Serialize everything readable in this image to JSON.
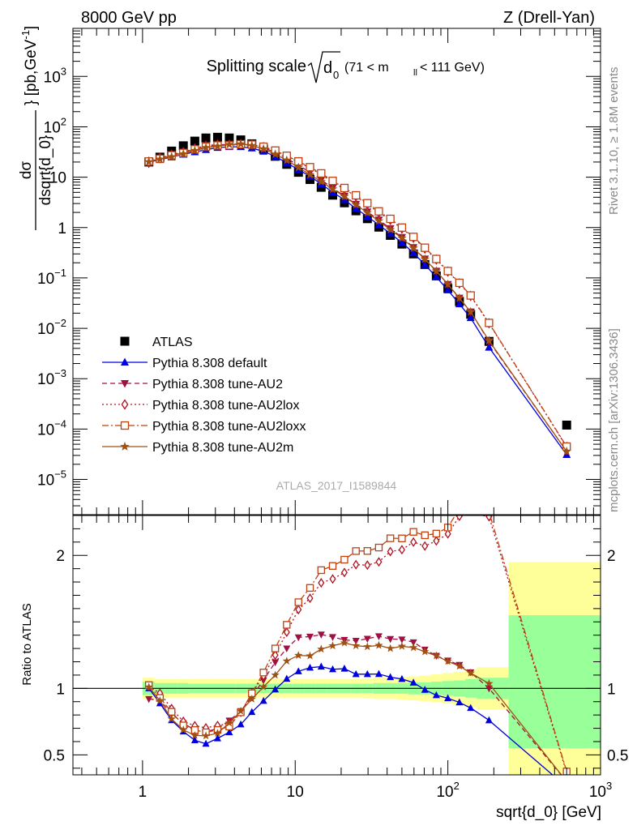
{
  "header": {
    "left": "8000 GeV pp",
    "right": "Z (Drell-Yan)"
  },
  "side_labels": {
    "rivet": "Rivet 3.1.10, ≥ 1.8M events",
    "mcplots": "mcplots.cern.ch [arXiv:1306.3436]"
  },
  "watermark": "ATLAS_2017_I1589844",
  "colors": {
    "atlas": "#000000",
    "default": "#0000dd",
    "au2": "#a01040",
    "au2lox": "#b01020",
    "au2loxx": "#c04010",
    "au2m": "#a05010",
    "band_inner": "#99ff99",
    "band_outer": "#ffff99"
  },
  "chart_data": [
    {
      "type": "scatter",
      "panel": "main",
      "title": "Splitting scale",
      "title_sqrt": "d",
      "title_sqrt_sub": "0",
      "title_range": "(71 < m",
      "title_range_sub": "ll",
      "title_range_end": " < 111 GeV)",
      "ylabel_num": "dσ",
      "ylabel_den": "dsqrt{d_0}",
      "ylabel_unit": "[pb,GeV",
      "ylabel_unit_sup": "-1",
      "ylabel_unit_end": "]",
      "yscale": "log",
      "xscale": "log",
      "xlim": [
        0.35,
        1000
      ],
      "ylim": [
        2e-06,
        9000
      ],
      "y_tick_labels": [
        {
          "v": 1e-05,
          "base": "10",
          "exp": "−5"
        },
        {
          "v": 0.0001,
          "base": "10",
          "exp": "−4"
        },
        {
          "v": 0.001,
          "base": "10",
          "exp": "−3"
        },
        {
          "v": 0.01,
          "base": "10",
          "exp": "−2"
        },
        {
          "v": 0.1,
          "base": "10",
          "exp": "−1"
        },
        {
          "v": 1,
          "base": "1",
          "exp": ""
        },
        {
          "v": 10,
          "base": "10",
          "exp": ""
        },
        {
          "v": 100,
          "base": "10",
          "exp": "2"
        },
        {
          "v": 1000,
          "base": "10",
          "exp": "3"
        }
      ],
      "legend_position": "bottom-left",
      "x": [
        1.1,
        1.3,
        1.55,
        1.85,
        2.2,
        2.6,
        3.1,
        3.7,
        4.4,
        5.2,
        6.2,
        7.4,
        8.8,
        10.5,
        12.5,
        14.8,
        17.6,
        21,
        25,
        29.7,
        35.3,
        42,
        50,
        59.5,
        70.7,
        84,
        100,
        119,
        141,
        186,
        600
      ],
      "series": [
        {
          "name": "ATLAS",
          "key": "atlas",
          "marker": "square",
          "values": [
            20,
            25,
            33,
            42,
            52,
            60,
            62,
            60,
            55,
            46,
            36,
            26,
            18,
            12.5,
            9,
            6.3,
            4.4,
            3.1,
            2.15,
            1.5,
            1.02,
            0.7,
            0.47,
            0.3,
            0.185,
            0.11,
            0.062,
            0.034,
            0.019,
            0.0055,
            0.00012
          ]
        },
        {
          "name": "Pythia 8.308 default",
          "key": "default",
          "marker": "triangle-up",
          "line": "solid",
          "values": [
            20,
            22.2,
            25.1,
            28.4,
            31.7,
            35,
            38.7,
            40.2,
            40.1,
            37.8,
            32.6,
            25.8,
            19.3,
            14.1,
            10.4,
            7.33,
            5.03,
            3.56,
            2.38,
            1.66,
            1.13,
            0.759,
            0.503,
            0.313,
            0.183,
            0.1043,
            0.0574,
            0.0304,
            0.0162,
            0.00418,
            3.1e-05
          ]
        },
        {
          "name": "Pythia 8.308 tune-AU2",
          "key": "au2",
          "marker": "triangle-down",
          "line": "dashed",
          "values": [
            18.4,
            22.8,
            26.7,
            31,
            35.7,
            40.5,
            43.2,
            45.5,
            45.6,
            43.2,
            38.2,
            31.1,
            23.4,
            17.3,
            12.5,
            8.85,
            6.1,
            4.23,
            2.92,
            2.06,
            1.42,
            0.96,
            0.643,
            0.404,
            0.239,
            0.137,
            0.075,
            0.04,
            0.0213,
            0.0055,
            3.6e-05
          ]
        },
        {
          "name": "Pythia 8.308 tune-AU2lox",
          "key": "au2lox",
          "marker": "diamond-open",
          "line": "dotted",
          "values": [
            20.3,
            24.1,
            28,
            31.6,
            37.4,
            42.2,
            44.7,
            44.1,
            45.1,
            44.3,
            39.4,
            32.5,
            25.6,
            19.9,
            15.1,
            11.3,
            8.02,
            5.8,
            4.15,
            2.89,
            1.99,
            1.42,
            0.96,
            0.63,
            0.383,
            0.232,
            0.134,
            0.078,
            0.044,
            0.0126,
            4.4e-05
          ]
        },
        {
          "name": "Pythia 8.308 tune-AU2loxx",
          "key": "au2loxx",
          "marker": "square-open",
          "line": "dashdot",
          "values": [
            20.5,
            23.2,
            27.2,
            30.3,
            35.7,
            40.2,
            42.6,
            42.8,
            45.1,
            44.3,
            40.3,
            33.8,
            26.6,
            20.6,
            15.8,
            11.9,
            8.45,
            6.1,
            4.37,
            3.05,
            2.1,
            1.49,
            1,
            0.653,
            0.398,
            0.238,
            0.137,
            0.08,
            0.0449,
            0.0128,
            4.5e-05
          ]
        },
        {
          "name": "Pythia 8.308 tune-AU2m",
          "key": "au2m",
          "marker": "star",
          "line": "solid",
          "values": [
            20.2,
            22.7,
            25.4,
            28.9,
            33.6,
            38.6,
            41.1,
            44.4,
            45.6,
            42.3,
            36.4,
            28.6,
            21.7,
            15.6,
            11.2,
            8.16,
            5.81,
            4.16,
            2.84,
            1.97,
            1.35,
            0.91,
            0.619,
            0.392,
            0.236,
            0.137,
            0.0746,
            0.0397,
            0.0212,
            0.0057,
            3.6e-05
          ]
        }
      ]
    },
    {
      "type": "scatter",
      "panel": "ratio",
      "ylabel": "Ratio to ATLAS",
      "xlabel": "sqrt{d_0} [GeV]",
      "xscale": "log",
      "xlim": [
        0.35,
        1000
      ],
      "ylim": [
        0.35,
        2.3
      ],
      "y_tick_labels": [
        "0.5",
        "1",
        "2"
      ],
      "y_ticks": [
        0.5,
        1,
        2
      ],
      "x_tick_labels": [
        {
          "v": 1,
          "base": "1",
          "exp": ""
        },
        {
          "v": 10,
          "base": "10",
          "exp": ""
        },
        {
          "v": 100,
          "base": "10",
          "exp": "2"
        },
        {
          "v": 1000,
          "base": "10",
          "exp": "3"
        }
      ],
      "bands": {
        "edges": [
          1.0,
          1.2,
          1.4,
          1.7,
          2.0,
          2.4,
          2.85,
          3.4,
          4.05,
          4.8,
          5.7,
          6.8,
          8.1,
          9.6,
          11.5,
          13.6,
          16.2,
          19.3,
          23,
          27.3,
          32.5,
          38.7,
          46,
          54.7,
          65,
          77.4,
          92,
          109.5,
          130,
          155,
          250,
          1000
        ],
        "inner_lo": [
          0.95,
          0.96,
          0.96,
          0.96,
          0.965,
          0.965,
          0.965,
          0.965,
          0.965,
          0.965,
          0.965,
          0.965,
          0.965,
          0.965,
          0.965,
          0.965,
          0.965,
          0.965,
          0.965,
          0.965,
          0.96,
          0.96,
          0.96,
          0.955,
          0.955,
          0.95,
          0.945,
          0.94,
          0.93,
          0.92,
          0.55
        ],
        "inner_hi": [
          1.05,
          1.04,
          1.04,
          1.04,
          1.035,
          1.035,
          1.035,
          1.035,
          1.035,
          1.035,
          1.035,
          1.035,
          1.035,
          1.035,
          1.035,
          1.035,
          1.035,
          1.035,
          1.035,
          1.035,
          1.04,
          1.04,
          1.04,
          1.045,
          1.045,
          1.05,
          1.055,
          1.06,
          1.07,
          1.08,
          1.55
        ],
        "outer_lo": [
          0.92,
          0.93,
          0.93,
          0.93,
          0.93,
          0.93,
          0.93,
          0.93,
          0.93,
          0.93,
          0.93,
          0.93,
          0.93,
          0.93,
          0.93,
          0.93,
          0.93,
          0.93,
          0.93,
          0.925,
          0.92,
          0.92,
          0.915,
          0.91,
          0.905,
          0.895,
          0.885,
          0.875,
          0.86,
          0.84,
          0.35
        ],
        "outer_hi": [
          1.08,
          1.07,
          1.07,
          1.07,
          1.07,
          1.07,
          1.07,
          1.07,
          1.07,
          1.07,
          1.07,
          1.07,
          1.07,
          1.07,
          1.07,
          1.07,
          1.07,
          1.07,
          1.07,
          1.075,
          1.08,
          1.08,
          1.085,
          1.09,
          1.095,
          1.105,
          1.115,
          1.125,
          1.14,
          1.16,
          1.95
        ]
      },
      "reference_line": 1
    }
  ]
}
